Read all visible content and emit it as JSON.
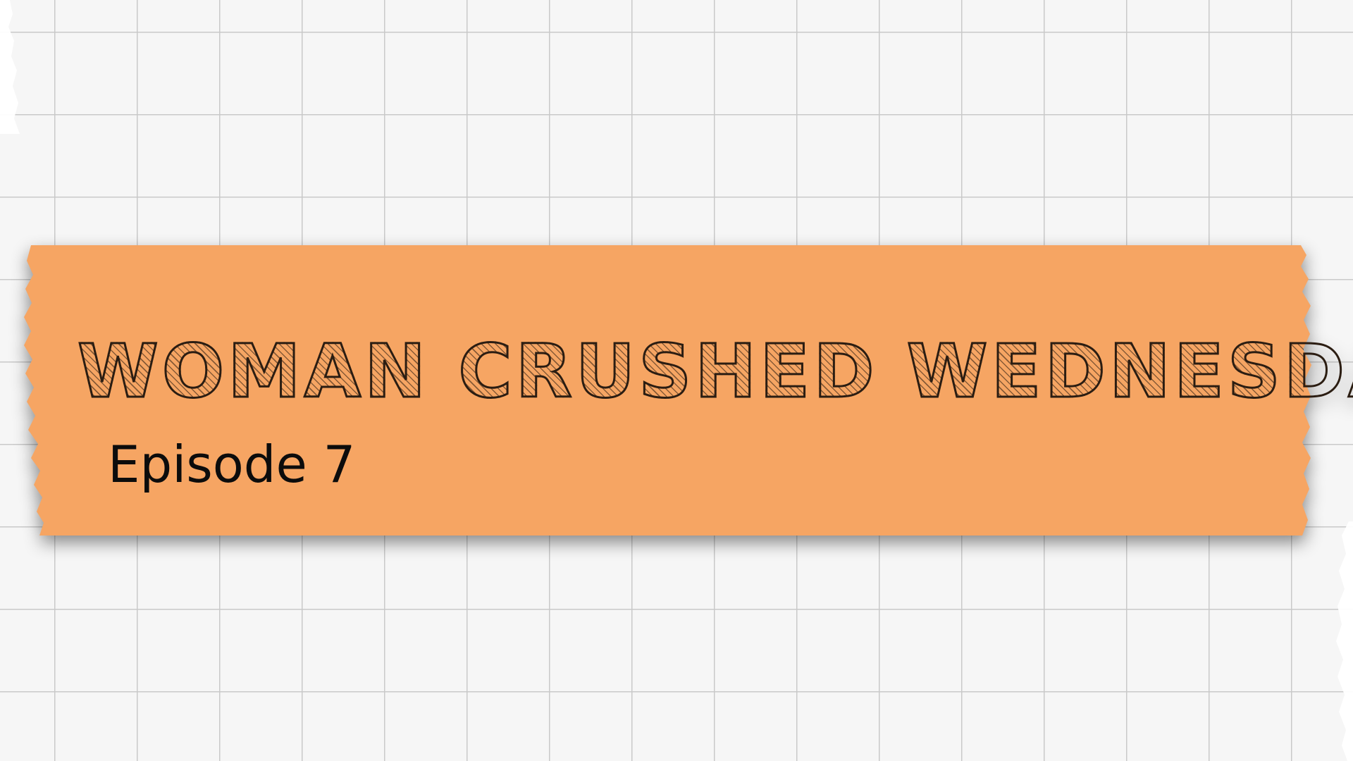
{
  "banner": {
    "title": "WOMAN CRUSHED WEDNESDAY",
    "subtitle": "Episode 7"
  },
  "colors": {
    "tape": "#f6a563",
    "paper": "#f6f6f6",
    "grid_line": "#c9c9c9",
    "text": "#0c0c0c"
  }
}
